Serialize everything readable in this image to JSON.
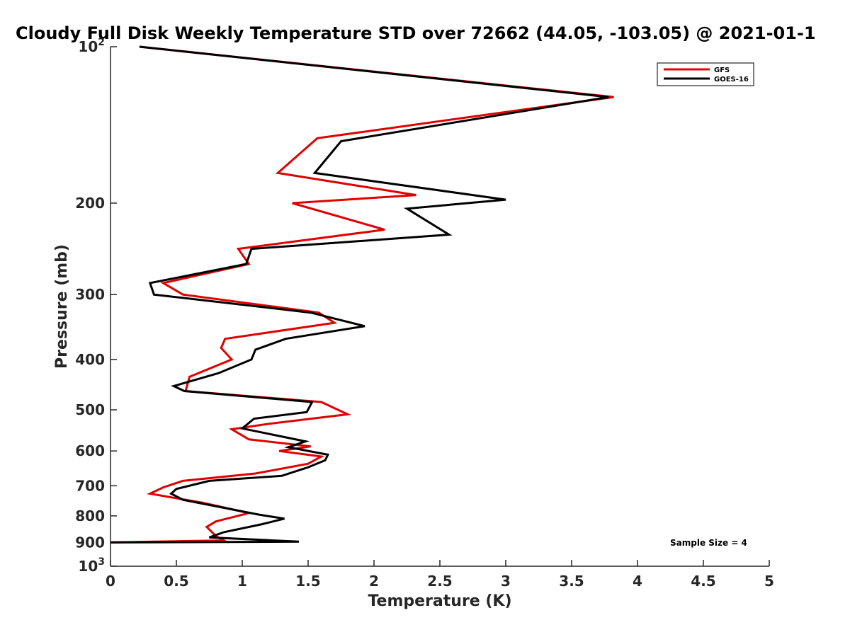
{
  "chart_data": {
    "type": "line",
    "title": "Cloudy Full Disk Weekly Temperature STD over 72662 (44.05, -103.05) @ 2021-01-1",
    "xlabel": "Temperature (K)",
    "ylabel": "Pressure (mb)",
    "xlim": [
      0,
      5
    ],
    "ylim": [
      100,
      1000
    ],
    "y_scale": "log",
    "y_reversed": true,
    "x_ticks": [
      "0",
      "0.5",
      "1",
      "1.5",
      "2",
      "2.5",
      "3",
      "3.5",
      "4",
      "4.5",
      "5"
    ],
    "y_ticks": [
      {
        "value": 100,
        "base": "10",
        "exp": "2"
      },
      {
        "value": 200,
        "label": "200"
      },
      {
        "value": 300,
        "label": "300"
      },
      {
        "value": 400,
        "label": "400"
      },
      {
        "value": 500,
        "label": "500"
      },
      {
        "value": 600,
        "label": "600"
      },
      {
        "value": 700,
        "label": "700"
      },
      {
        "value": 800,
        "label": "800"
      },
      {
        "value": 900,
        "label": "900"
      },
      {
        "value": 1000,
        "base": "10",
        "exp": "3"
      }
    ],
    "grid": false,
    "legend_position": "top-right",
    "annotation": "Sample Size = 4",
    "series": [
      {
        "name": "GFS",
        "color": "#e00000",
        "points": [
          [
            0.22,
            100
          ],
          [
            3.82,
            125
          ],
          [
            1.57,
            150
          ],
          [
            1.27,
            175
          ],
          [
            2.32,
            193
          ],
          [
            1.38,
            200
          ],
          [
            2.08,
            225
          ],
          [
            0.97,
            245
          ],
          [
            1.05,
            262
          ],
          [
            0.4,
            285
          ],
          [
            0.55,
            300
          ],
          [
            1.58,
            325
          ],
          [
            1.7,
            340
          ],
          [
            0.87,
            365
          ],
          [
            0.84,
            380
          ],
          [
            0.92,
            400
          ],
          [
            0.6,
            432
          ],
          [
            0.57,
            460
          ],
          [
            1.6,
            483
          ],
          [
            1.8,
            510
          ],
          [
            1.2,
            532
          ],
          [
            0.92,
            545
          ],
          [
            1.05,
            570
          ],
          [
            1.52,
            588
          ],
          [
            1.28,
            600
          ],
          [
            1.6,
            615
          ],
          [
            1.5,
            635
          ],
          [
            1.1,
            663
          ],
          [
            0.55,
            685
          ],
          [
            0.4,
            705
          ],
          [
            0.3,
            725
          ],
          [
            0.7,
            755
          ],
          [
            1.05,
            790
          ],
          [
            0.8,
            820
          ],
          [
            0.73,
            840
          ],
          [
            0.8,
            875
          ],
          [
            0.86,
            892
          ],
          [
            0.0,
            900
          ]
        ]
      },
      {
        "name": "GOES-16",
        "color": "#000000",
        "points": [
          [
            0.22,
            100
          ],
          [
            3.78,
            125
          ],
          [
            1.75,
            152
          ],
          [
            1.55,
            175
          ],
          [
            3.0,
            197
          ],
          [
            2.25,
            205
          ],
          [
            2.57,
            230
          ],
          [
            1.07,
            245
          ],
          [
            1.03,
            262
          ],
          [
            0.3,
            285
          ],
          [
            0.33,
            300
          ],
          [
            1.52,
            325
          ],
          [
            1.93,
            345
          ],
          [
            1.33,
            365
          ],
          [
            1.1,
            383
          ],
          [
            1.07,
            400
          ],
          [
            0.82,
            425
          ],
          [
            0.48,
            450
          ],
          [
            0.56,
            460
          ],
          [
            1.53,
            483
          ],
          [
            1.49,
            505
          ],
          [
            1.09,
            520
          ],
          [
            1.0,
            543
          ],
          [
            1.48,
            575
          ],
          [
            1.35,
            590
          ],
          [
            1.65,
            610
          ],
          [
            1.63,
            625
          ],
          [
            1.5,
            645
          ],
          [
            1.3,
            670
          ],
          [
            0.75,
            685
          ],
          [
            0.5,
            710
          ],
          [
            0.46,
            725
          ],
          [
            0.55,
            745
          ],
          [
            1.12,
            795
          ],
          [
            1.32,
            810
          ],
          [
            1.15,
            830
          ],
          [
            0.86,
            860
          ],
          [
            0.75,
            880
          ],
          [
            1.43,
            897
          ],
          [
            0.0,
            900
          ]
        ]
      }
    ]
  }
}
